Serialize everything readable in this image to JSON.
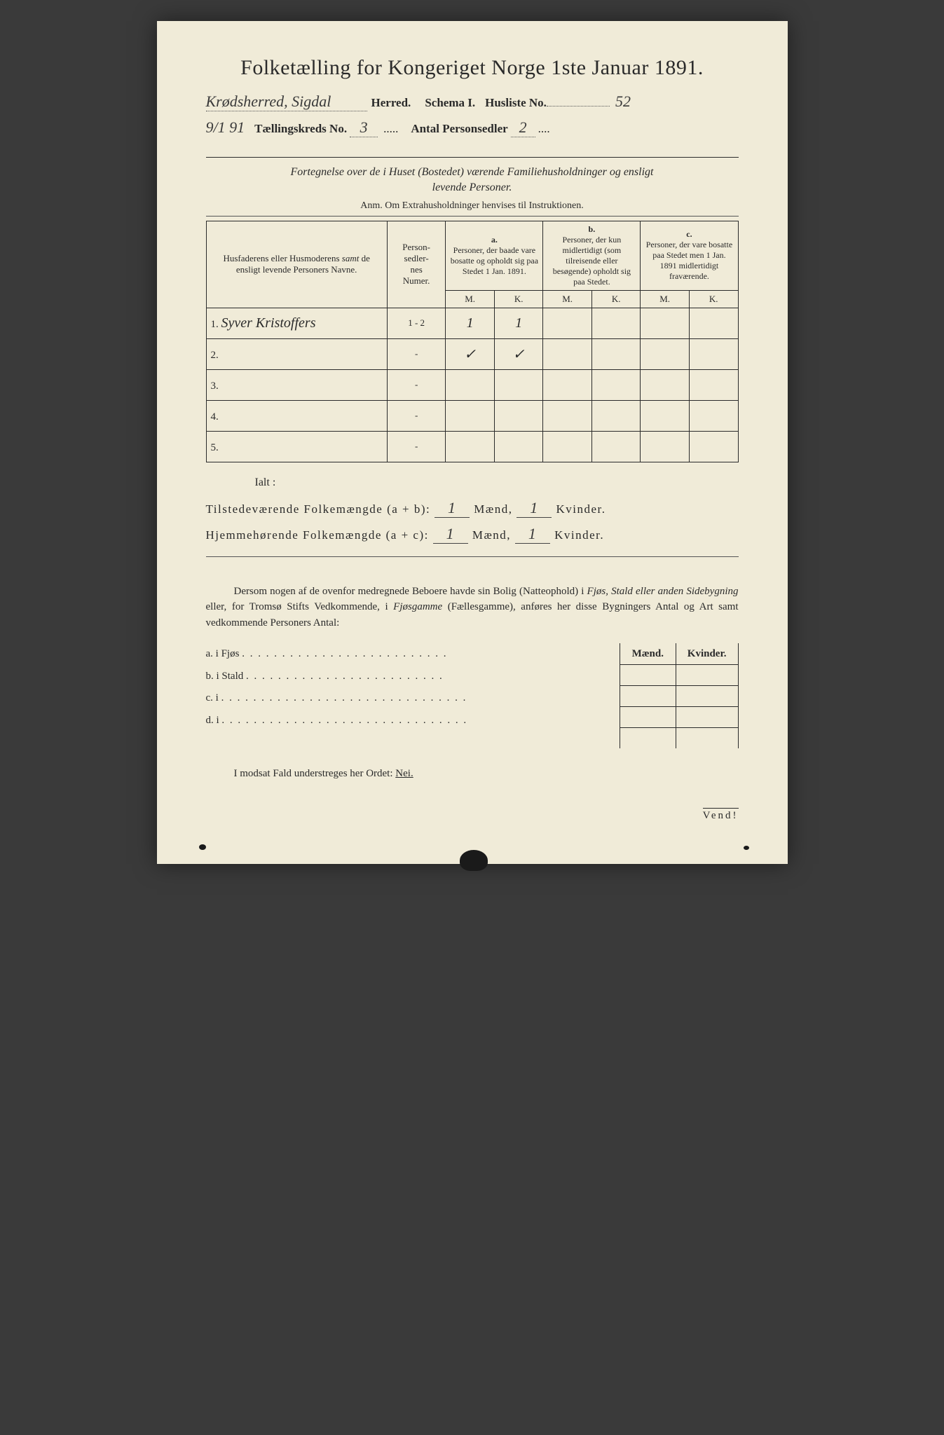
{
  "title": "Folketælling for Kongeriget Norge 1ste Januar 1891.",
  "header": {
    "herred_hand": "Krødsherred, Sigdal",
    "herred_label": "Herred.",
    "schema_label": "Schema I.",
    "husliste_label": "Husliste No.",
    "husliste_no": "52",
    "date_hand": "9/1 91",
    "kreds_label": "Tællingskreds No.",
    "kreds_no": "3",
    "sedler_label": "Antal Personsedler",
    "sedler_no": "2"
  },
  "instruct_line1": "Fortegnelse over de i Huset (Bostedet) værende Familiehusholdninger og ensligt",
  "instruct_line2": "levende Personer.",
  "anm": "Anm.  Om Extrahusholdninger henvises til Instruktionen.",
  "table": {
    "col_name": "Husfaderens eller Husmoderens samt de ensligt levende Personers Navne.",
    "col_num": "Person-\nsedler-\nnes\nNumer.",
    "grp_a_label": "a.",
    "grp_a_text": "Personer, der baade vare bosatte og opholdt sig paa Stedet 1 Jan. 1891.",
    "grp_b_label": "b.",
    "grp_b_text": "Personer, der kun midlertidigt (som tilreisende eller besøgende) opholdt sig paa Stedet.",
    "grp_c_label": "c.",
    "grp_c_text": "Personer, der vare bosatte paa Stedet men 1 Jan. 1891 midlertidigt fraværende.",
    "M": "M.",
    "K": "K.",
    "rows": [
      {
        "n": "1.",
        "name": "Syver Kristoffers",
        "num": "1 - 2",
        "aM": "1",
        "aK": "1",
        "bM": "",
        "bK": "",
        "cM": "",
        "cK": ""
      },
      {
        "n": "2.",
        "name": "",
        "num": "-",
        "aM": "✓",
        "aK": "✓",
        "bM": "",
        "bK": "",
        "cM": "",
        "cK": ""
      },
      {
        "n": "3.",
        "name": "",
        "num": "-",
        "aM": "",
        "aK": "",
        "bM": "",
        "bK": "",
        "cM": "",
        "cK": ""
      },
      {
        "n": "4.",
        "name": "",
        "num": "-",
        "aM": "",
        "aK": "",
        "bM": "",
        "bK": "",
        "cM": "",
        "cK": ""
      },
      {
        "n": "5.",
        "name": "",
        "num": "-",
        "aM": "",
        "aK": "",
        "bM": "",
        "bK": "",
        "cM": "",
        "cK": ""
      }
    ]
  },
  "ialt": "Ialt :",
  "totals": {
    "line1_label": "Tilstedeværende Folkemængde (a + b):",
    "line2_label": "Hjemmehørende Folkemængde (a + c):",
    "maend": "Mænd,",
    "kvinder": "Kvinder.",
    "t_m": "1",
    "t_k": "1",
    "h_m": "1",
    "h_k": "1"
  },
  "para": "Dersom nogen af de ovenfor medregnede Beboere havde sin Bolig (Natteophold) i Fjøs, Stald eller anden Sidebygning eller, for Tromsø Stifts Vedkommende, i Fjøsgamme (Fællesgamme), anføres her disse Bygningers Antal og Art samt vedkommende Personers Antal:",
  "sublist": {
    "a": "a.   i      Fjøs",
    "b": "b.   i      Stald",
    "c": "c.   i",
    "d": "d.   i",
    "maend": "Mænd.",
    "kvinder": "Kvinder."
  },
  "nei_line": "I modsat Fald understreges her Ordet:",
  "nei": "Nei.",
  "vend": "Vend!",
  "colors": {
    "paper": "#f0ebd8",
    "ink": "#2a2a2a",
    "bg": "#3a3a3a"
  }
}
